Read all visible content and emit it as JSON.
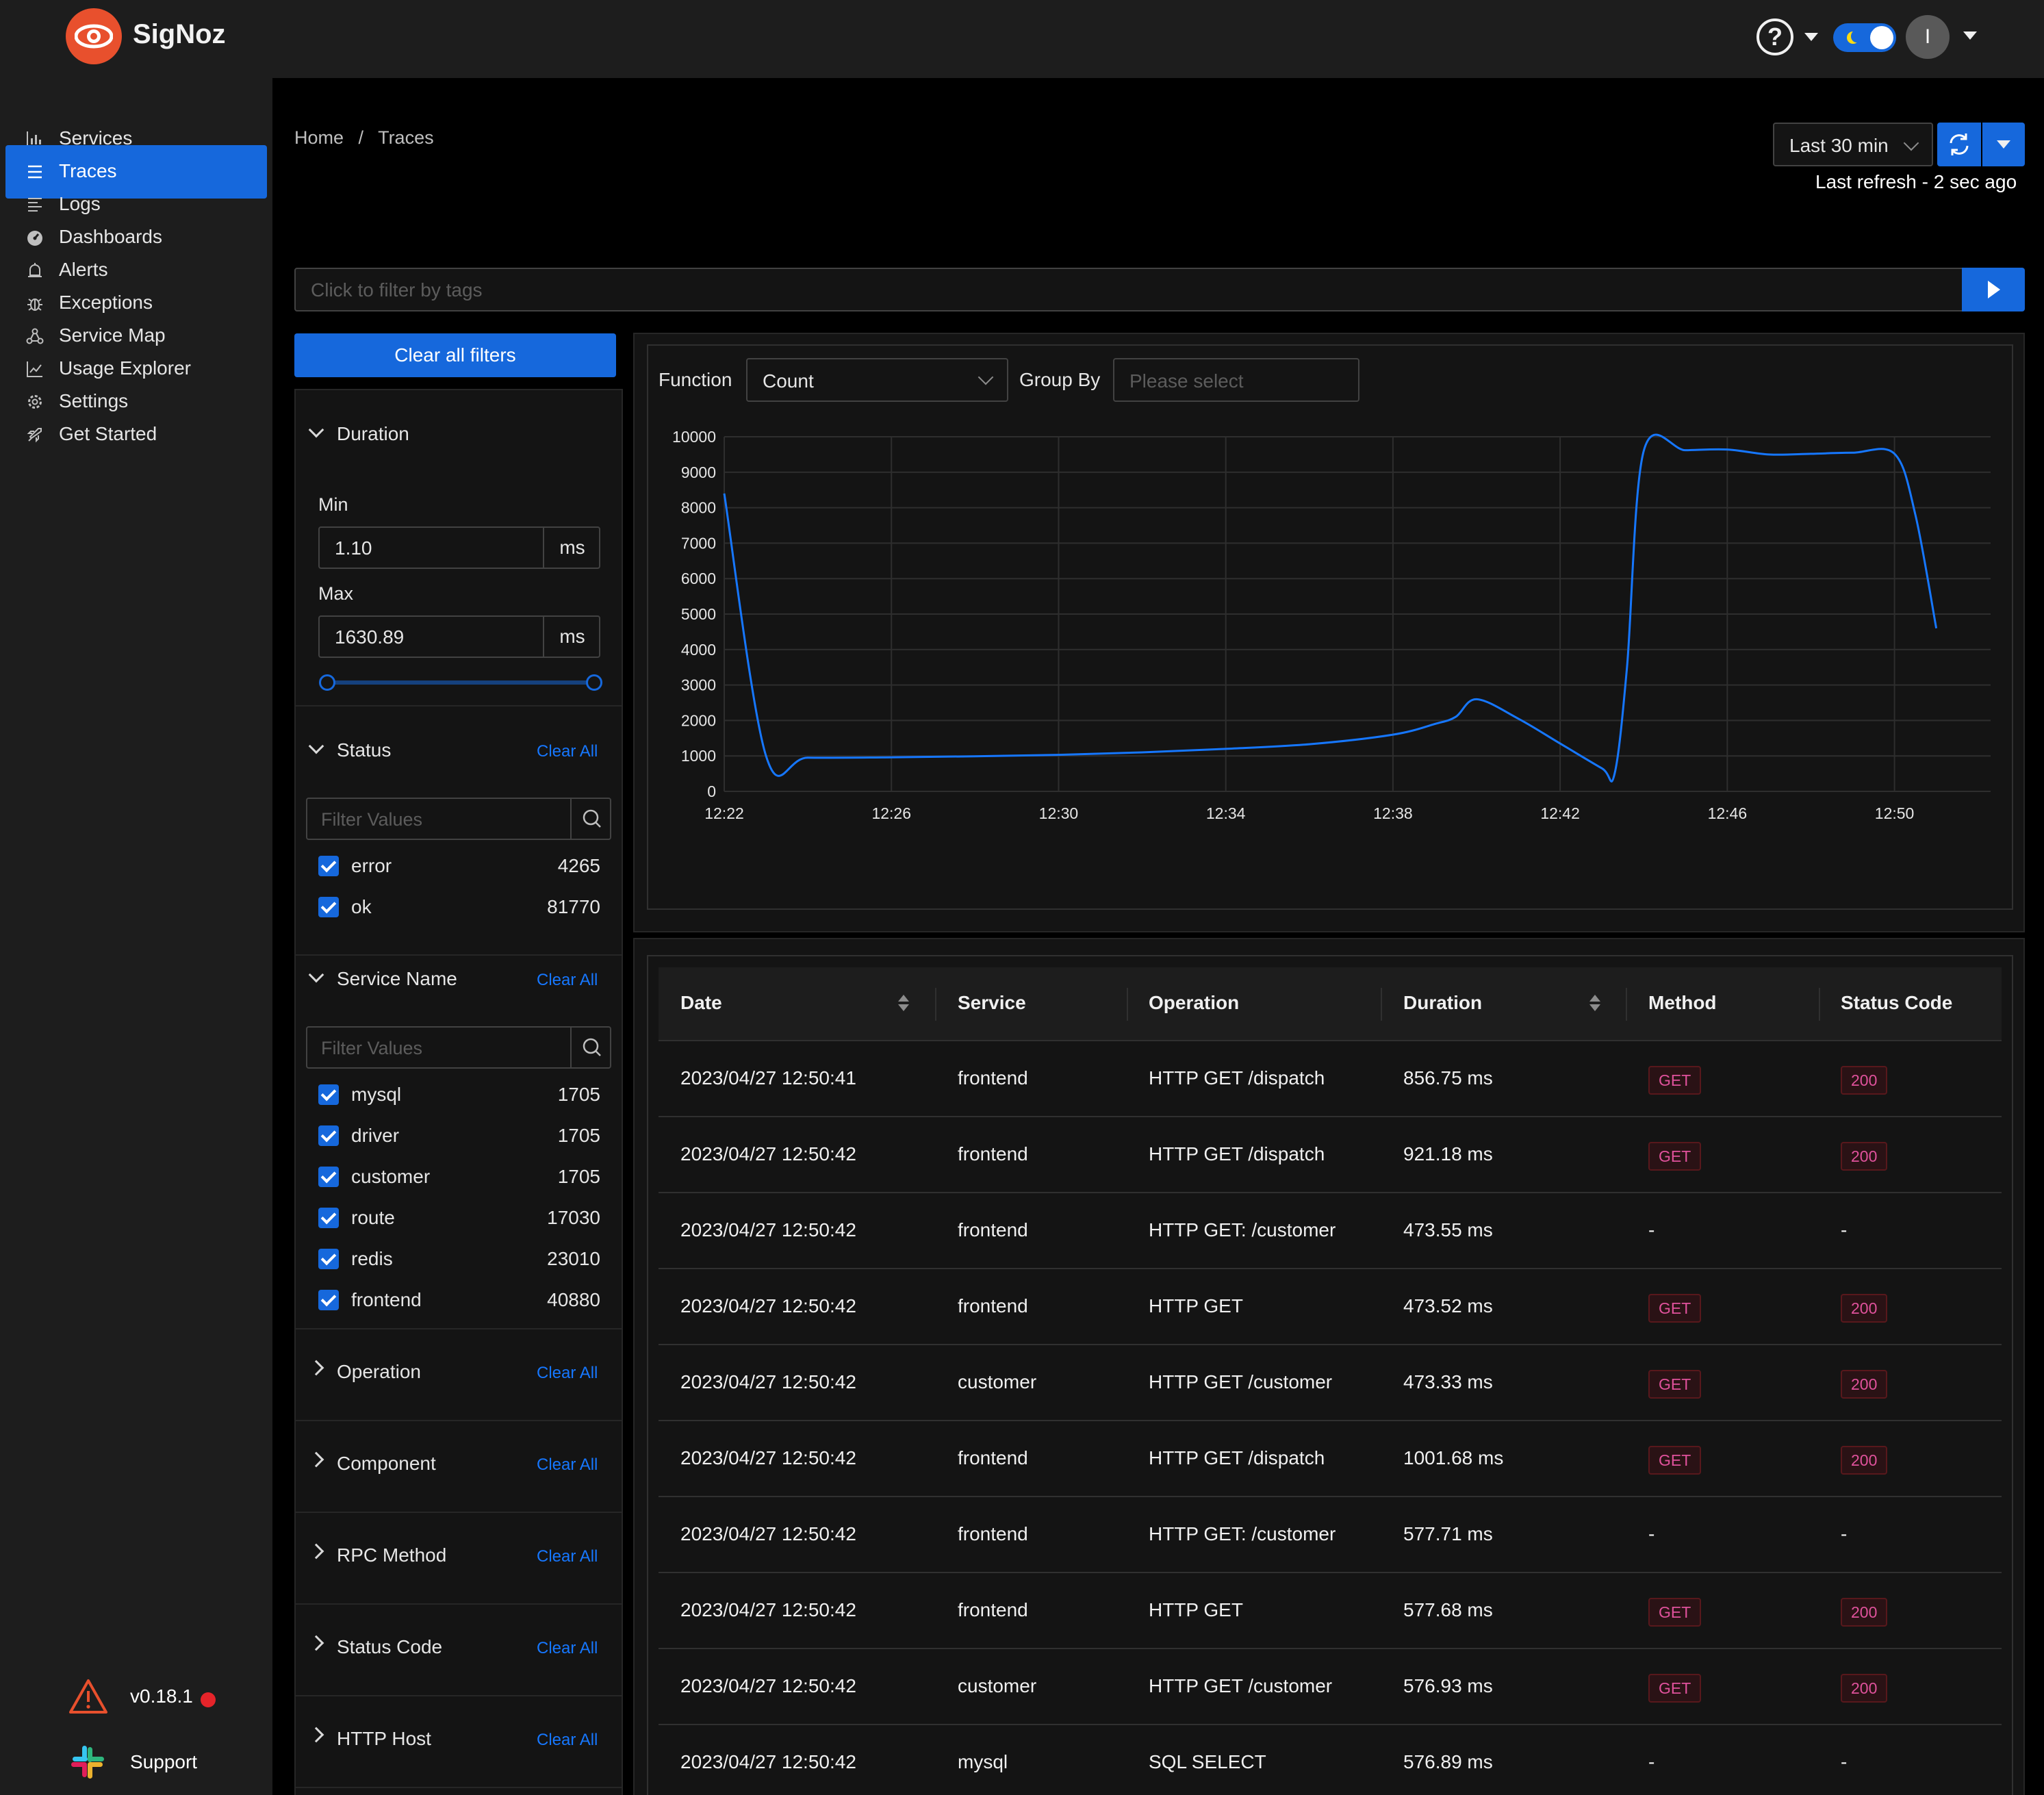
{
  "header": {
    "brand": "SigNoz",
    "help_icon": "?",
    "avatar_initial": "I"
  },
  "sidebar": {
    "items": [
      {
        "label": "Services",
        "icon": "bar-chart-icon"
      },
      {
        "label": "Traces",
        "icon": "menu-icon",
        "active": true
      },
      {
        "label": "Logs",
        "icon": "align-left-icon"
      },
      {
        "label": "Dashboards",
        "icon": "dashboard-icon"
      },
      {
        "label": "Alerts",
        "icon": "alert-bell-icon"
      },
      {
        "label": "Exceptions",
        "icon": "bug-icon"
      },
      {
        "label": "Service Map",
        "icon": "deployment-unit-icon"
      },
      {
        "label": "Usage Explorer",
        "icon": "line-chart-icon"
      },
      {
        "label": "Settings",
        "icon": "gear-icon"
      },
      {
        "label": "Get Started",
        "icon": "rocket-icon"
      }
    ],
    "version": "v0.18.1",
    "support": "Support",
    "collapse_glyph": "<"
  },
  "breadcrumb": {
    "home": "Home",
    "separator": "/",
    "current": "Traces"
  },
  "time": {
    "selected": "Last 30 min",
    "last_refresh": "Last refresh - 2 sec ago"
  },
  "tag_filter": {
    "placeholder": "Click to filter by tags"
  },
  "filters": {
    "clear_all_filters": "Clear all filters",
    "clear_all": "Clear All",
    "duration": {
      "title": "Duration",
      "min_label": "Min",
      "min_value": "1.10",
      "max_label": "Max",
      "max_value": "1630.89",
      "unit": "ms"
    },
    "status": {
      "title": "Status",
      "placeholder": "Filter Values",
      "items": [
        {
          "label": "error",
          "count": "4265"
        },
        {
          "label": "ok",
          "count": "81770"
        }
      ]
    },
    "service_name": {
      "title": "Service Name",
      "placeholder": "Filter Values",
      "items": [
        {
          "label": "mysql",
          "count": "1705"
        },
        {
          "label": "driver",
          "count": "1705"
        },
        {
          "label": "customer",
          "count": "1705"
        },
        {
          "label": "route",
          "count": "17030"
        },
        {
          "label": "redis",
          "count": "23010"
        },
        {
          "label": "frontend",
          "count": "40880"
        }
      ]
    },
    "collapsed": [
      "Operation",
      "Component",
      "RPC Method",
      "Status Code",
      "HTTP Host"
    ]
  },
  "chart_controls": {
    "function_label": "Function",
    "function_value": "Count",
    "group_by_label": "Group By",
    "group_by_placeholder": "Please select"
  },
  "chart_data": {
    "type": "line",
    "x_ticks": [
      "12:22",
      "12:26",
      "12:30",
      "12:34",
      "12:38",
      "12:42",
      "12:46",
      "12:50"
    ],
    "y_ticks": [
      0,
      1000,
      2000,
      3000,
      4000,
      5000,
      6000,
      7000,
      8000,
      9000,
      10000
    ],
    "ylim": [
      0,
      10000
    ],
    "grid": true,
    "color": "#1677ff",
    "series": [
      {
        "x_minutes_after_12_22": [
          0,
          1,
          2,
          4,
          6,
          8,
          10,
          12,
          14,
          16,
          17,
          17.5,
          18,
          19,
          20,
          21,
          21.3,
          21.6,
          22,
          23,
          24,
          25,
          26,
          27,
          28,
          28.5,
          29
        ],
        "values": [
          8400,
          1000,
          950,
          960,
          990,
          1030,
          1100,
          1200,
          1330,
          1600,
          1900,
          2100,
          2600,
          2050,
          1350,
          650,
          480,
          3500,
          9600,
          9620,
          9640,
          9500,
          9520,
          9550,
          9520,
          7800,
          4600
        ]
      }
    ]
  },
  "table": {
    "columns": [
      "Date",
      "Service",
      "Operation",
      "Duration",
      "Method",
      "Status Code"
    ],
    "rows": [
      {
        "date": "2023/04/27 12:50:41",
        "service": "frontend",
        "operation": "HTTP GET /dispatch",
        "duration": "856.75 ms",
        "method": "GET",
        "status": "200"
      },
      {
        "date": "2023/04/27 12:50:42",
        "service": "frontend",
        "operation": "HTTP GET /dispatch",
        "duration": "921.18 ms",
        "method": "GET",
        "status": "200"
      },
      {
        "date": "2023/04/27 12:50:42",
        "service": "frontend",
        "operation": "HTTP GET: /customer",
        "duration": "473.55 ms",
        "method": "-",
        "status": "-"
      },
      {
        "date": "2023/04/27 12:50:42",
        "service": "frontend",
        "operation": "HTTP GET",
        "duration": "473.52 ms",
        "method": "GET",
        "status": "200"
      },
      {
        "date": "2023/04/27 12:50:42",
        "service": "customer",
        "operation": "HTTP GET /customer",
        "duration": "473.33 ms",
        "method": "GET",
        "status": "200"
      },
      {
        "date": "2023/04/27 12:50:42",
        "service": "frontend",
        "operation": "HTTP GET /dispatch",
        "duration": "1001.68 ms",
        "method": "GET",
        "status": "200"
      },
      {
        "date": "2023/04/27 12:50:42",
        "service": "frontend",
        "operation": "HTTP GET: /customer",
        "duration": "577.71 ms",
        "method": "-",
        "status": "-"
      },
      {
        "date": "2023/04/27 12:50:42",
        "service": "frontend",
        "operation": "HTTP GET",
        "duration": "577.68 ms",
        "method": "GET",
        "status": "200"
      },
      {
        "date": "2023/04/27 12:50:42",
        "service": "customer",
        "operation": "HTTP GET /customer",
        "duration": "576.93 ms",
        "method": "GET",
        "status": "200"
      },
      {
        "date": "2023/04/27 12:50:42",
        "service": "mysql",
        "operation": "SQL SELECT",
        "duration": "576.89 ms",
        "method": "-",
        "status": "-"
      }
    ]
  }
}
